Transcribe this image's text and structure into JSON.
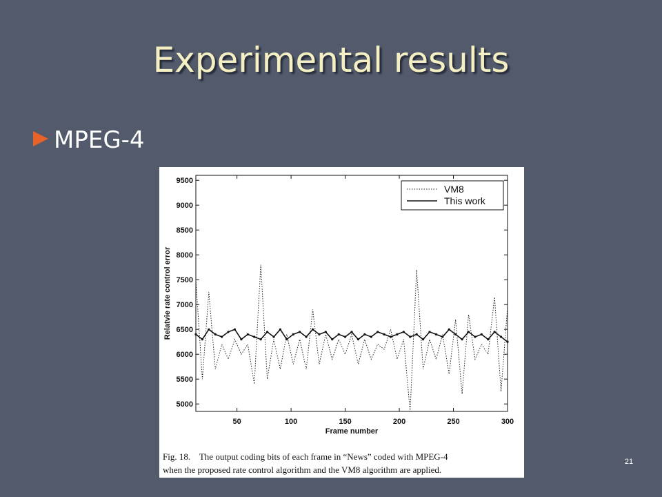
{
  "slide": {
    "title": "Experimental results",
    "bullet": "MPEG-4",
    "page_number": "21"
  },
  "chart_data": {
    "type": "line",
    "x_label": "Frame number",
    "y_label": "Relatvie rate control error",
    "caption": [
      "Fig. 18.    The output coding bits of each frame in “News” coded with MPEG-4",
      "when the proposed rate control algorithm and the VM8 algorithm are applied."
    ],
    "x": [
      12,
      18,
      24,
      30,
      36,
      42,
      48,
      54,
      60,
      66,
      72,
      78,
      84,
      90,
      96,
      102,
      108,
      114,
      120,
      126,
      132,
      138,
      144,
      150,
      156,
      162,
      168,
      174,
      180,
      186,
      192,
      198,
      204,
      210,
      216,
      222,
      228,
      234,
      240,
      246,
      252,
      258,
      264,
      270,
      276,
      282,
      288,
      294,
      300
    ],
    "series": [
      {
        "name": "VM8",
        "color": "#222222",
        "style": "dotted",
        "values": [
          7500,
          5500,
          7250,
          5700,
          6200,
          5900,
          6300,
          6000,
          6200,
          5400,
          7800,
          5500,
          6300,
          5700,
          6400,
          5800,
          6300,
          5700,
          6900,
          5800,
          6400,
          5900,
          6300,
          6000,
          6400,
          5800,
          6300,
          5900,
          6200,
          6100,
          6500,
          5900,
          6300,
          4850,
          7700,
          5700,
          6300,
          5900,
          6400,
          5600,
          6700,
          5200,
          6800,
          5900,
          6200,
          6000,
          7150,
          5250,
          6950
        ]
      },
      {
        "name": "This work",
        "color": "#111111",
        "style": "solid",
        "values": [
          6400,
          6300,
          6500,
          6400,
          6350,
          6450,
          6500,
          6300,
          6400,
          6350,
          6300,
          6450,
          6350,
          6500,
          6300,
          6400,
          6450,
          6350,
          6500,
          6400,
          6450,
          6300,
          6400,
          6350,
          6450,
          6300,
          6400,
          6350,
          6450,
          6400,
          6350,
          6400,
          6450,
          6350,
          6400,
          6300,
          6450,
          6400,
          6350,
          6500,
          6400,
          6300,
          6450,
          6350,
          6400,
          6300,
          6450,
          6350,
          6250
        ]
      }
    ],
    "xlim": [
      12,
      300
    ],
    "xticks": [
      50,
      100,
      150,
      200,
      250,
      300
    ],
    "ylim": [
      4850,
      9600
    ],
    "yticks": [
      5000,
      5500,
      6000,
      6500,
      7000,
      7500,
      8000,
      8500,
      9000,
      9500
    ],
    "legend": "upper right"
  }
}
